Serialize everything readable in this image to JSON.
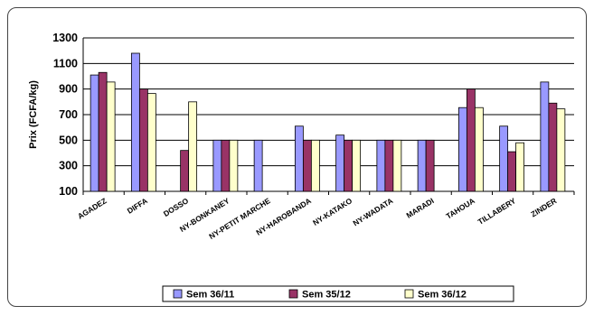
{
  "chart_data": {
    "type": "bar",
    "title": "",
    "xlabel": "",
    "ylabel": "Prix (FCFA/kg)",
    "ylim": [
      100,
      1300
    ],
    "yticks": [
      100,
      300,
      500,
      700,
      900,
      1100,
      1300
    ],
    "grid": true,
    "legend_position": "bottom",
    "categories": [
      "AGADEZ",
      "DIFFA",
      "DOSSO",
      "NY-BONKANEY",
      "NY-PETIT MARCHE",
      "NY-HAROBANDA",
      "NY-KATAKO",
      "NY-WADATA",
      "MARADI",
      "TAHOUA",
      "TILLABERY",
      "ZINDER"
    ],
    "series": [
      {
        "name": "Sem 36/11",
        "color": "#9999ff",
        "values": [
          1010,
          1180,
          null,
          500,
          500,
          610,
          540,
          500,
          500,
          755,
          610,
          955
        ]
      },
      {
        "name": "Sem 35/12",
        "color": "#993366",
        "values": [
          1030,
          900,
          420,
          500,
          null,
          500,
          500,
          500,
          500,
          900,
          410,
          790
        ]
      },
      {
        "name": "Sem 36/12",
        "color": "#ffffcc",
        "values": [
          955,
          865,
          800,
          500,
          null,
          500,
          500,
          500,
          null,
          755,
          480,
          745
        ]
      }
    ]
  }
}
